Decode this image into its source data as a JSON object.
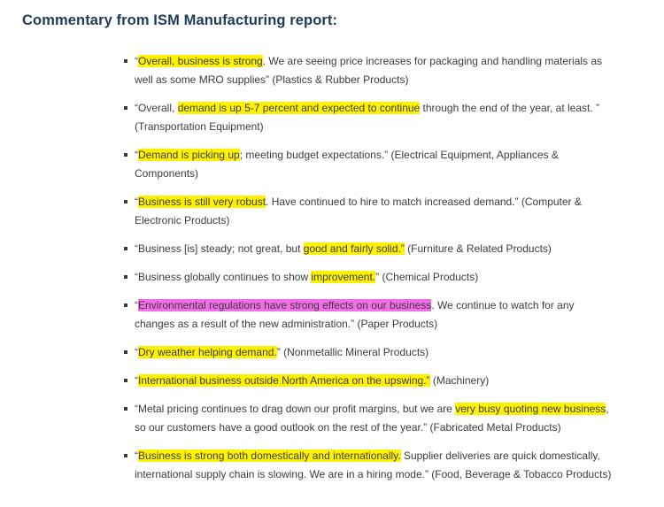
{
  "page": {
    "title": "Commentary from ISM Manufacturing report:"
  },
  "colors": {
    "title": "#1f3a5c",
    "body_text": "#3c3c3c",
    "highlight_yellow": "#fef200",
    "highlight_pink": "#f36ce9"
  },
  "bullets": [
    {
      "segments": [
        {
          "t": "“"
        },
        {
          "t": "Overall, business is strong",
          "h": "yellow"
        },
        {
          "t": ". We are seeing price increases for packaging and handling materials as well as some MRO supplies” (Plastics & Rubber Products)"
        }
      ]
    },
    {
      "segments": [
        {
          "t": "“Overall, "
        },
        {
          "t": "demand is up 5-7 percent and expected to continue",
          "h": "yellow"
        },
        {
          "t": " through the end of the year, at least. ” (Transportation Equipment)"
        }
      ]
    },
    {
      "segments": [
        {
          "t": "“"
        },
        {
          "t": "Demand is picking up",
          "h": "yellow"
        },
        {
          "t": "; meeting budget expectations.” (Electrical Equipment, Appliances & Components)"
        }
      ]
    },
    {
      "segments": [
        {
          "t": "“"
        },
        {
          "t": "Business is still very robust",
          "h": "yellow"
        },
        {
          "t": ". Have continued to hire to match increased demand.” (Computer & Electronic Products)"
        }
      ]
    },
    {
      "segments": [
        {
          "t": "“Business [is] steady; not great, but "
        },
        {
          "t": "good and fairly solid.”",
          "h": "yellow"
        },
        {
          "t": " (Furniture & Related Products)"
        }
      ]
    },
    {
      "segments": [
        {
          "t": "“Business globally continues to show "
        },
        {
          "t": "improvement.",
          "h": "yellow"
        },
        {
          "t": "” (Chemical Products)"
        }
      ]
    },
    {
      "segments": [
        {
          "t": "“"
        },
        {
          "t": "Environmental regulations have strong effects on our business",
          "h": "pink"
        },
        {
          "t": ". We continue to watch for any changes as a result of the new administration.” (Paper Products)"
        }
      ]
    },
    {
      "segments": [
        {
          "t": "“"
        },
        {
          "t": "Dry weather helping demand.",
          "h": "yellow"
        },
        {
          "t": "” (Nonmetallic Mineral Products)"
        }
      ]
    },
    {
      "segments": [
        {
          "t": "“"
        },
        {
          "t": "International business outside North America on the upswing.”",
          "h": "yellow"
        },
        {
          "t": " (Machinery)"
        }
      ]
    },
    {
      "segments": [
        {
          "t": "“Metal pricing continues to drag down our profit margins, but we are "
        },
        {
          "t": "very busy quoting new business",
          "h": "yellow"
        },
        {
          "t": ", so our customers have a good outlook on the rest of the year.” (Fabricated Metal Products)"
        }
      ]
    },
    {
      "segments": [
        {
          "t": "“"
        },
        {
          "t": "Business is strong both domestically and internationally.",
          "h": "yellow"
        },
        {
          "t": " Supplier deliveries are quick domestically, international supply chain is slowing. We are in a hiring mode.” (Food, Beverage & Tobacco Products)"
        }
      ]
    }
  ]
}
